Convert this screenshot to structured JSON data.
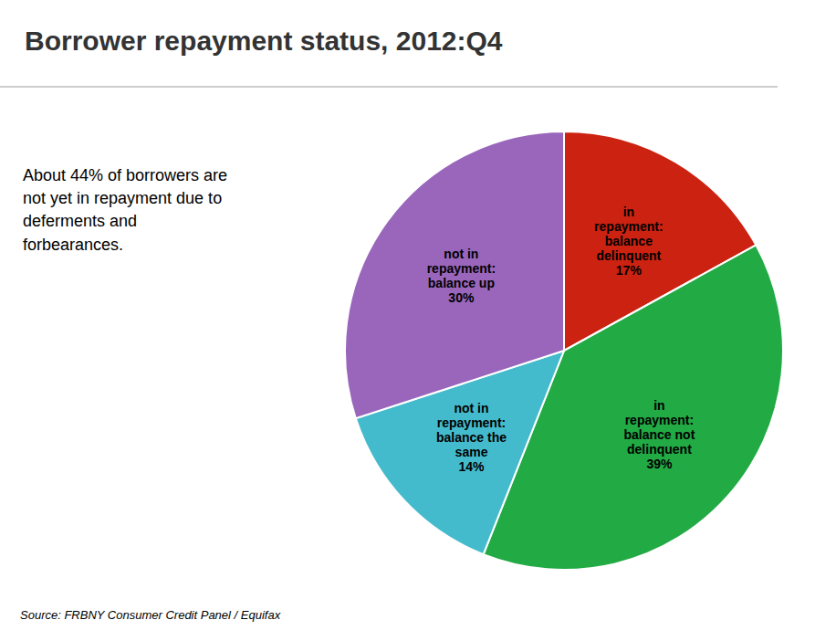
{
  "chart_data": {
    "type": "pie",
    "title": "Borrower repayment status, 2012:Q4",
    "annotations": [
      "About 44% of borrowers are\nnot yet in repayment due to\ndeferments and\nforbearances.",
      "Source: FRBNY Consumer Credit Panel / Equifax"
    ],
    "categories": [
      "in\nrepayment:\nbalance\ndelinquent\n17%",
      "in\nrepayment:\nbalance not\ndelinquent\n39%",
      "not in\nrepayment:\nbalance the\nsame\n14%",
      "not in\nrepayment:\nbalance up\n30%"
    ],
    "values": [
      17,
      39,
      14,
      30
    ],
    "colors": [
      "#cc2211",
      "#22aa44",
      "#44bbcc",
      "#9966bb"
    ]
  }
}
